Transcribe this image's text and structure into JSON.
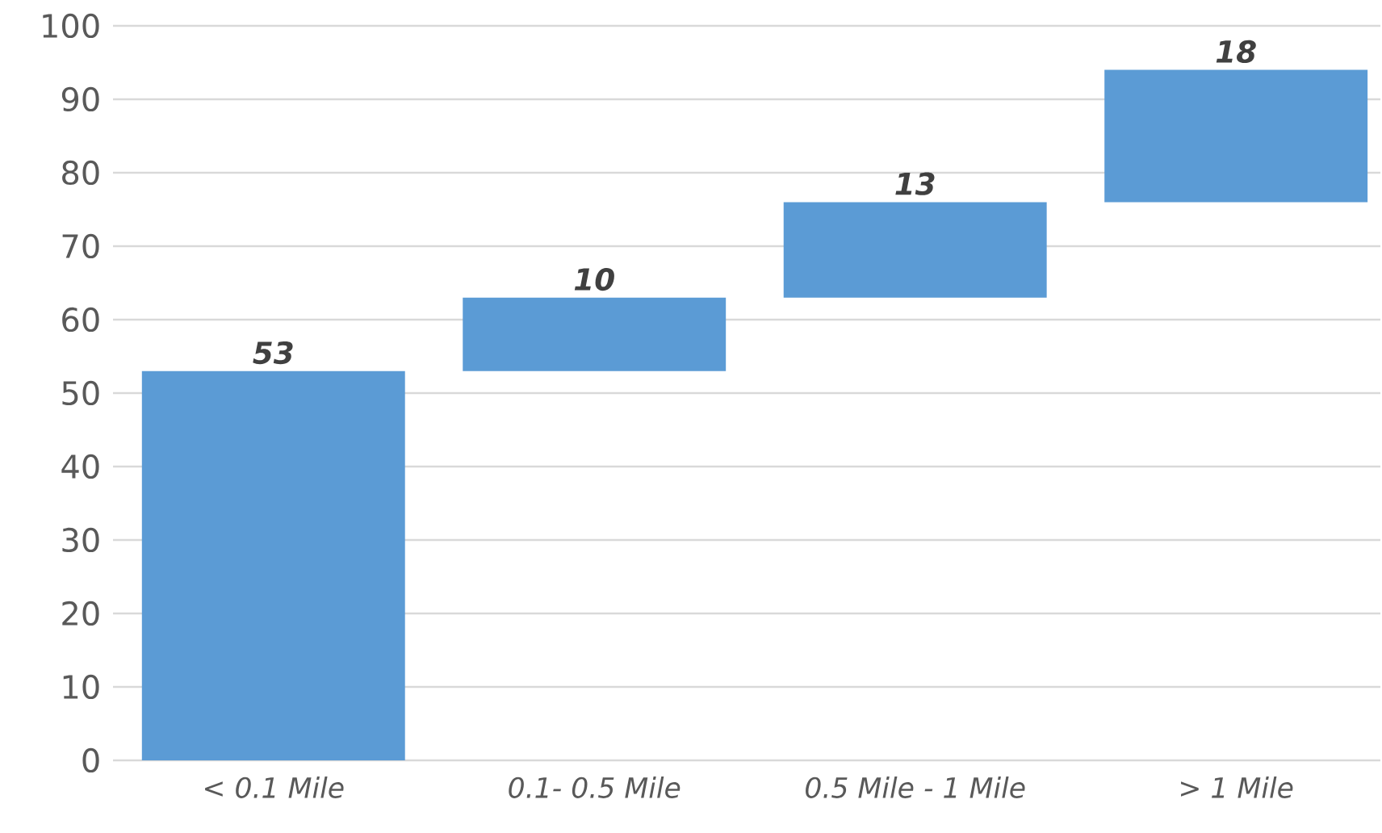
{
  "chart_data": {
    "type": "bar",
    "categories": [
      "< 0.1 Mile",
      "0.1- 0.5 Mile",
      "0.5 Mile - 1 Mile",
      "> 1 Mile"
    ],
    "values": [
      53,
      10,
      13,
      18
    ],
    "base": [
      0,
      53,
      63,
      76
    ],
    "color": "#5b9bd5",
    "data_labels": true,
    "ylim": [
      0,
      100
    ],
    "yticks": [
      0,
      10,
      20,
      30,
      40,
      50,
      60,
      70,
      80,
      90,
      100
    ],
    "grid": "y"
  }
}
